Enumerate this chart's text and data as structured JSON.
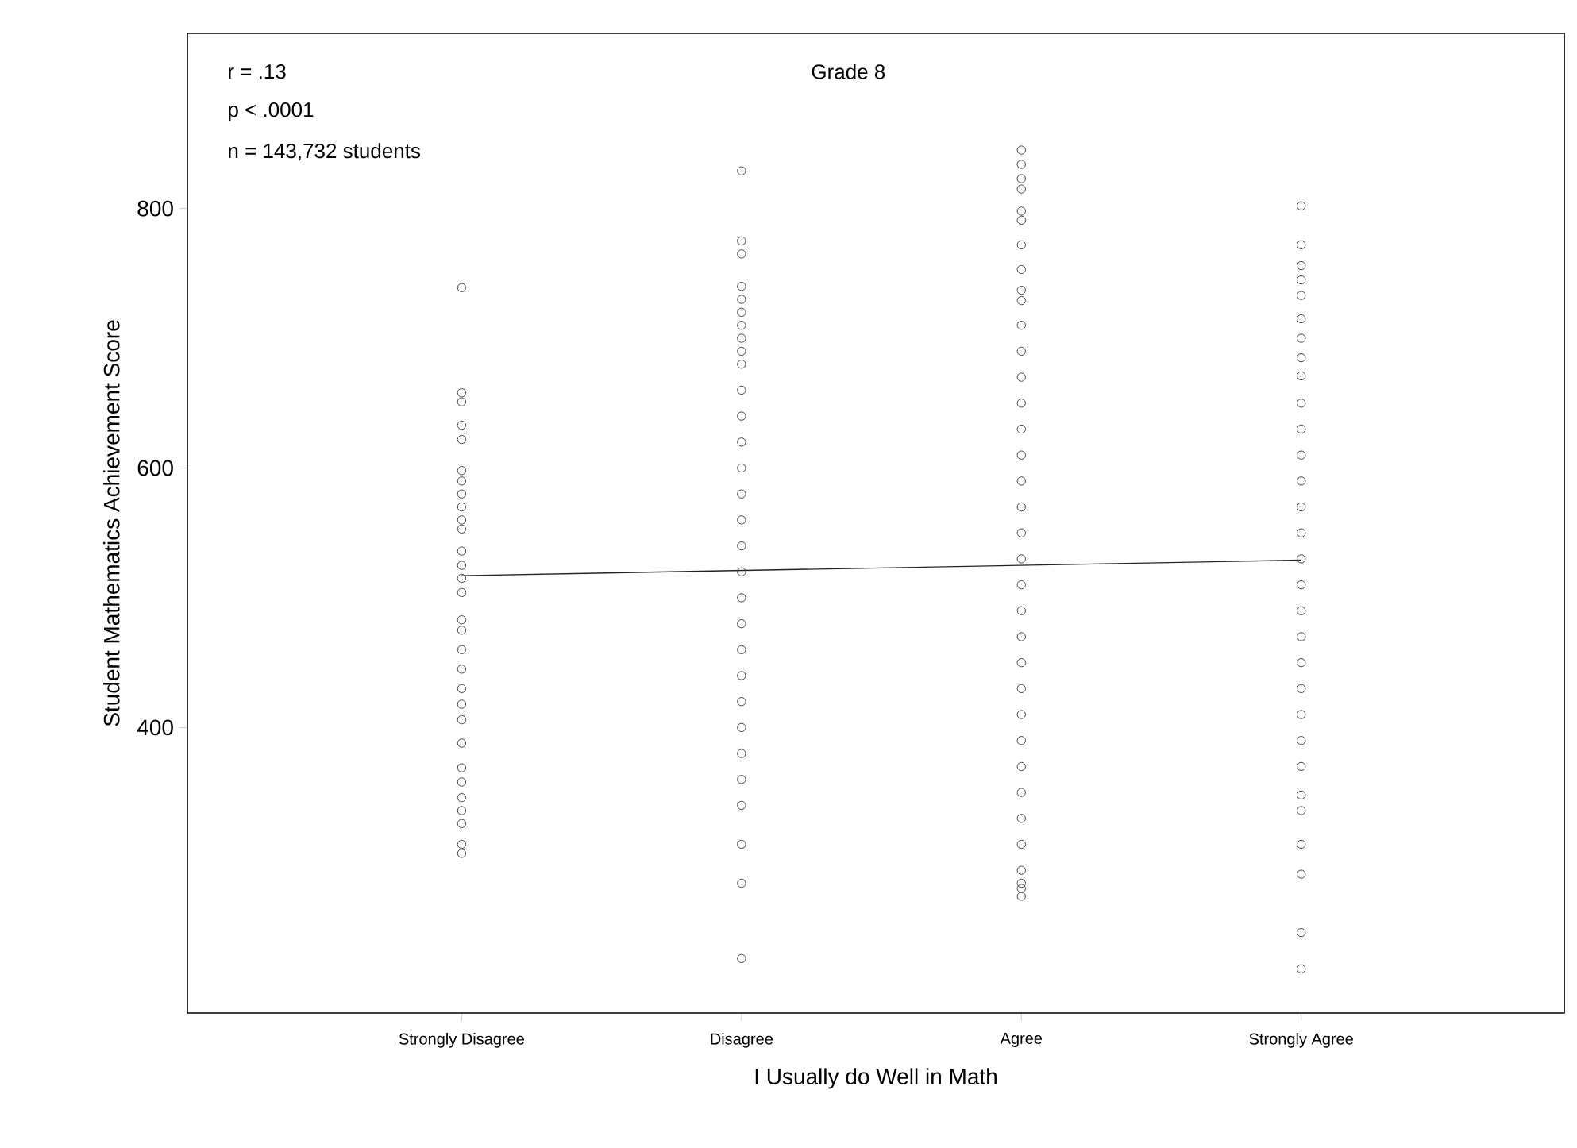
{
  "chart_data": {
    "type": "scatter",
    "title": "Grade 8",
    "xlabel": "I Usually do Well in Math",
    "ylabel": "Student Mathematics Achievement Score",
    "categories": [
      "Strongly Disagree",
      "Disagree",
      "Agree",
      "Strongly Agree"
    ],
    "ylim": [
      180,
      935
    ],
    "yticks": [
      400,
      600,
      800
    ],
    "grid": false,
    "marker": "circle",
    "annotations": [
      "r  =  .13",
      "p  <  .0001",
      "n  =  143,732 students"
    ],
    "series": [
      {
        "color": "#444444",
        "x": [
          "Strongly Disagree",
          "Strongly Disagree",
          "Strongly Disagree",
          "Strongly Disagree",
          "Strongly Disagree",
          "Strongly Disagree",
          "Strongly Disagree",
          "Strongly Disagree",
          "Strongly Disagree",
          "Strongly Disagree",
          "Strongly Disagree",
          "Strongly Disagree",
          "Strongly Disagree",
          "Strongly Disagree",
          "Strongly Disagree",
          "Strongly Disagree",
          "Strongly Disagree",
          "Strongly Disagree",
          "Strongly Disagree",
          "Strongly Disagree",
          "Strongly Disagree",
          "Strongly Disagree",
          "Strongly Disagree",
          "Strongly Disagree",
          "Strongly Disagree",
          "Strongly Disagree",
          "Strongly Disagree",
          "Strongly Disagree",
          "Strongly Disagree",
          "Strongly Disagree"
        ],
        "values": [
          739,
          658,
          651,
          633,
          622,
          598,
          590,
          580,
          570,
          560,
          553,
          536,
          525,
          515,
          504,
          483,
          475,
          460,
          445,
          430,
          418,
          406,
          388,
          369,
          358,
          346,
          336,
          326,
          310,
          303
        ]
      },
      {
        "color": "#444444",
        "x": [
          "Disagree",
          "Disagree",
          "Disagree",
          "Disagree",
          "Disagree",
          "Disagree",
          "Disagree",
          "Disagree",
          "Disagree",
          "Disagree",
          "Disagree",
          "Disagree",
          "Disagree",
          "Disagree",
          "Disagree",
          "Disagree",
          "Disagree",
          "Disagree",
          "Disagree",
          "Disagree",
          "Disagree",
          "Disagree",
          "Disagree",
          "Disagree",
          "Disagree",
          "Disagree",
          "Disagree",
          "Disagree",
          "Disagree",
          "Disagree"
        ],
        "values": [
          829,
          775,
          765,
          740,
          730,
          720,
          710,
          700,
          690,
          680,
          660,
          640,
          620,
          600,
          580,
          560,
          540,
          520,
          500,
          480,
          460,
          440,
          420,
          400,
          380,
          360,
          340,
          310,
          280,
          222
        ]
      },
      {
        "color": "#444444",
        "x": [
          "Agree",
          "Agree",
          "Agree",
          "Agree",
          "Agree",
          "Agree",
          "Agree",
          "Agree",
          "Agree",
          "Agree",
          "Agree",
          "Agree",
          "Agree",
          "Agree",
          "Agree",
          "Agree",
          "Agree",
          "Agree",
          "Agree",
          "Agree",
          "Agree",
          "Agree",
          "Agree",
          "Agree",
          "Agree",
          "Agree",
          "Agree",
          "Agree",
          "Agree",
          "Agree",
          "Agree",
          "Agree",
          "Agree",
          "Agree",
          "Agree"
        ],
        "values": [
          845,
          834,
          823,
          815,
          798,
          791,
          772,
          753,
          737,
          729,
          710,
          690,
          670,
          650,
          630,
          610,
          590,
          570,
          550,
          530,
          510,
          490,
          470,
          450,
          430,
          410,
          390,
          370,
          350,
          330,
          310,
          290,
          280,
          276,
          270
        ]
      },
      {
        "color": "#444444",
        "x": [
          "Strongly Agree",
          "Strongly Agree",
          "Strongly Agree",
          "Strongly Agree",
          "Strongly Agree",
          "Strongly Agree",
          "Strongly Agree",
          "Strongly Agree",
          "Strongly Agree",
          "Strongly Agree",
          "Strongly Agree",
          "Strongly Agree",
          "Strongly Agree",
          "Strongly Agree",
          "Strongly Agree",
          "Strongly Agree",
          "Strongly Agree",
          "Strongly Agree",
          "Strongly Agree",
          "Strongly Agree",
          "Strongly Agree",
          "Strongly Agree",
          "Strongly Agree",
          "Strongly Agree",
          "Strongly Agree",
          "Strongly Agree",
          "Strongly Agree",
          "Strongly Agree",
          "Strongly Agree",
          "Strongly Agree"
        ],
        "values": [
          802,
          772,
          756,
          745,
          733,
          715,
          700,
          685,
          671,
          650,
          630,
          610,
          590,
          570,
          550,
          530,
          510,
          490,
          470,
          450,
          430,
          410,
          390,
          370,
          348,
          336,
          310,
          287,
          242,
          214
        ]
      },
      {
        "type": "line",
        "color": "#222222",
        "marker": "none",
        "x": [
          "Strongly Disagree",
          "Strongly Agree"
        ],
        "values": [
          517,
          529
        ]
      }
    ]
  }
}
